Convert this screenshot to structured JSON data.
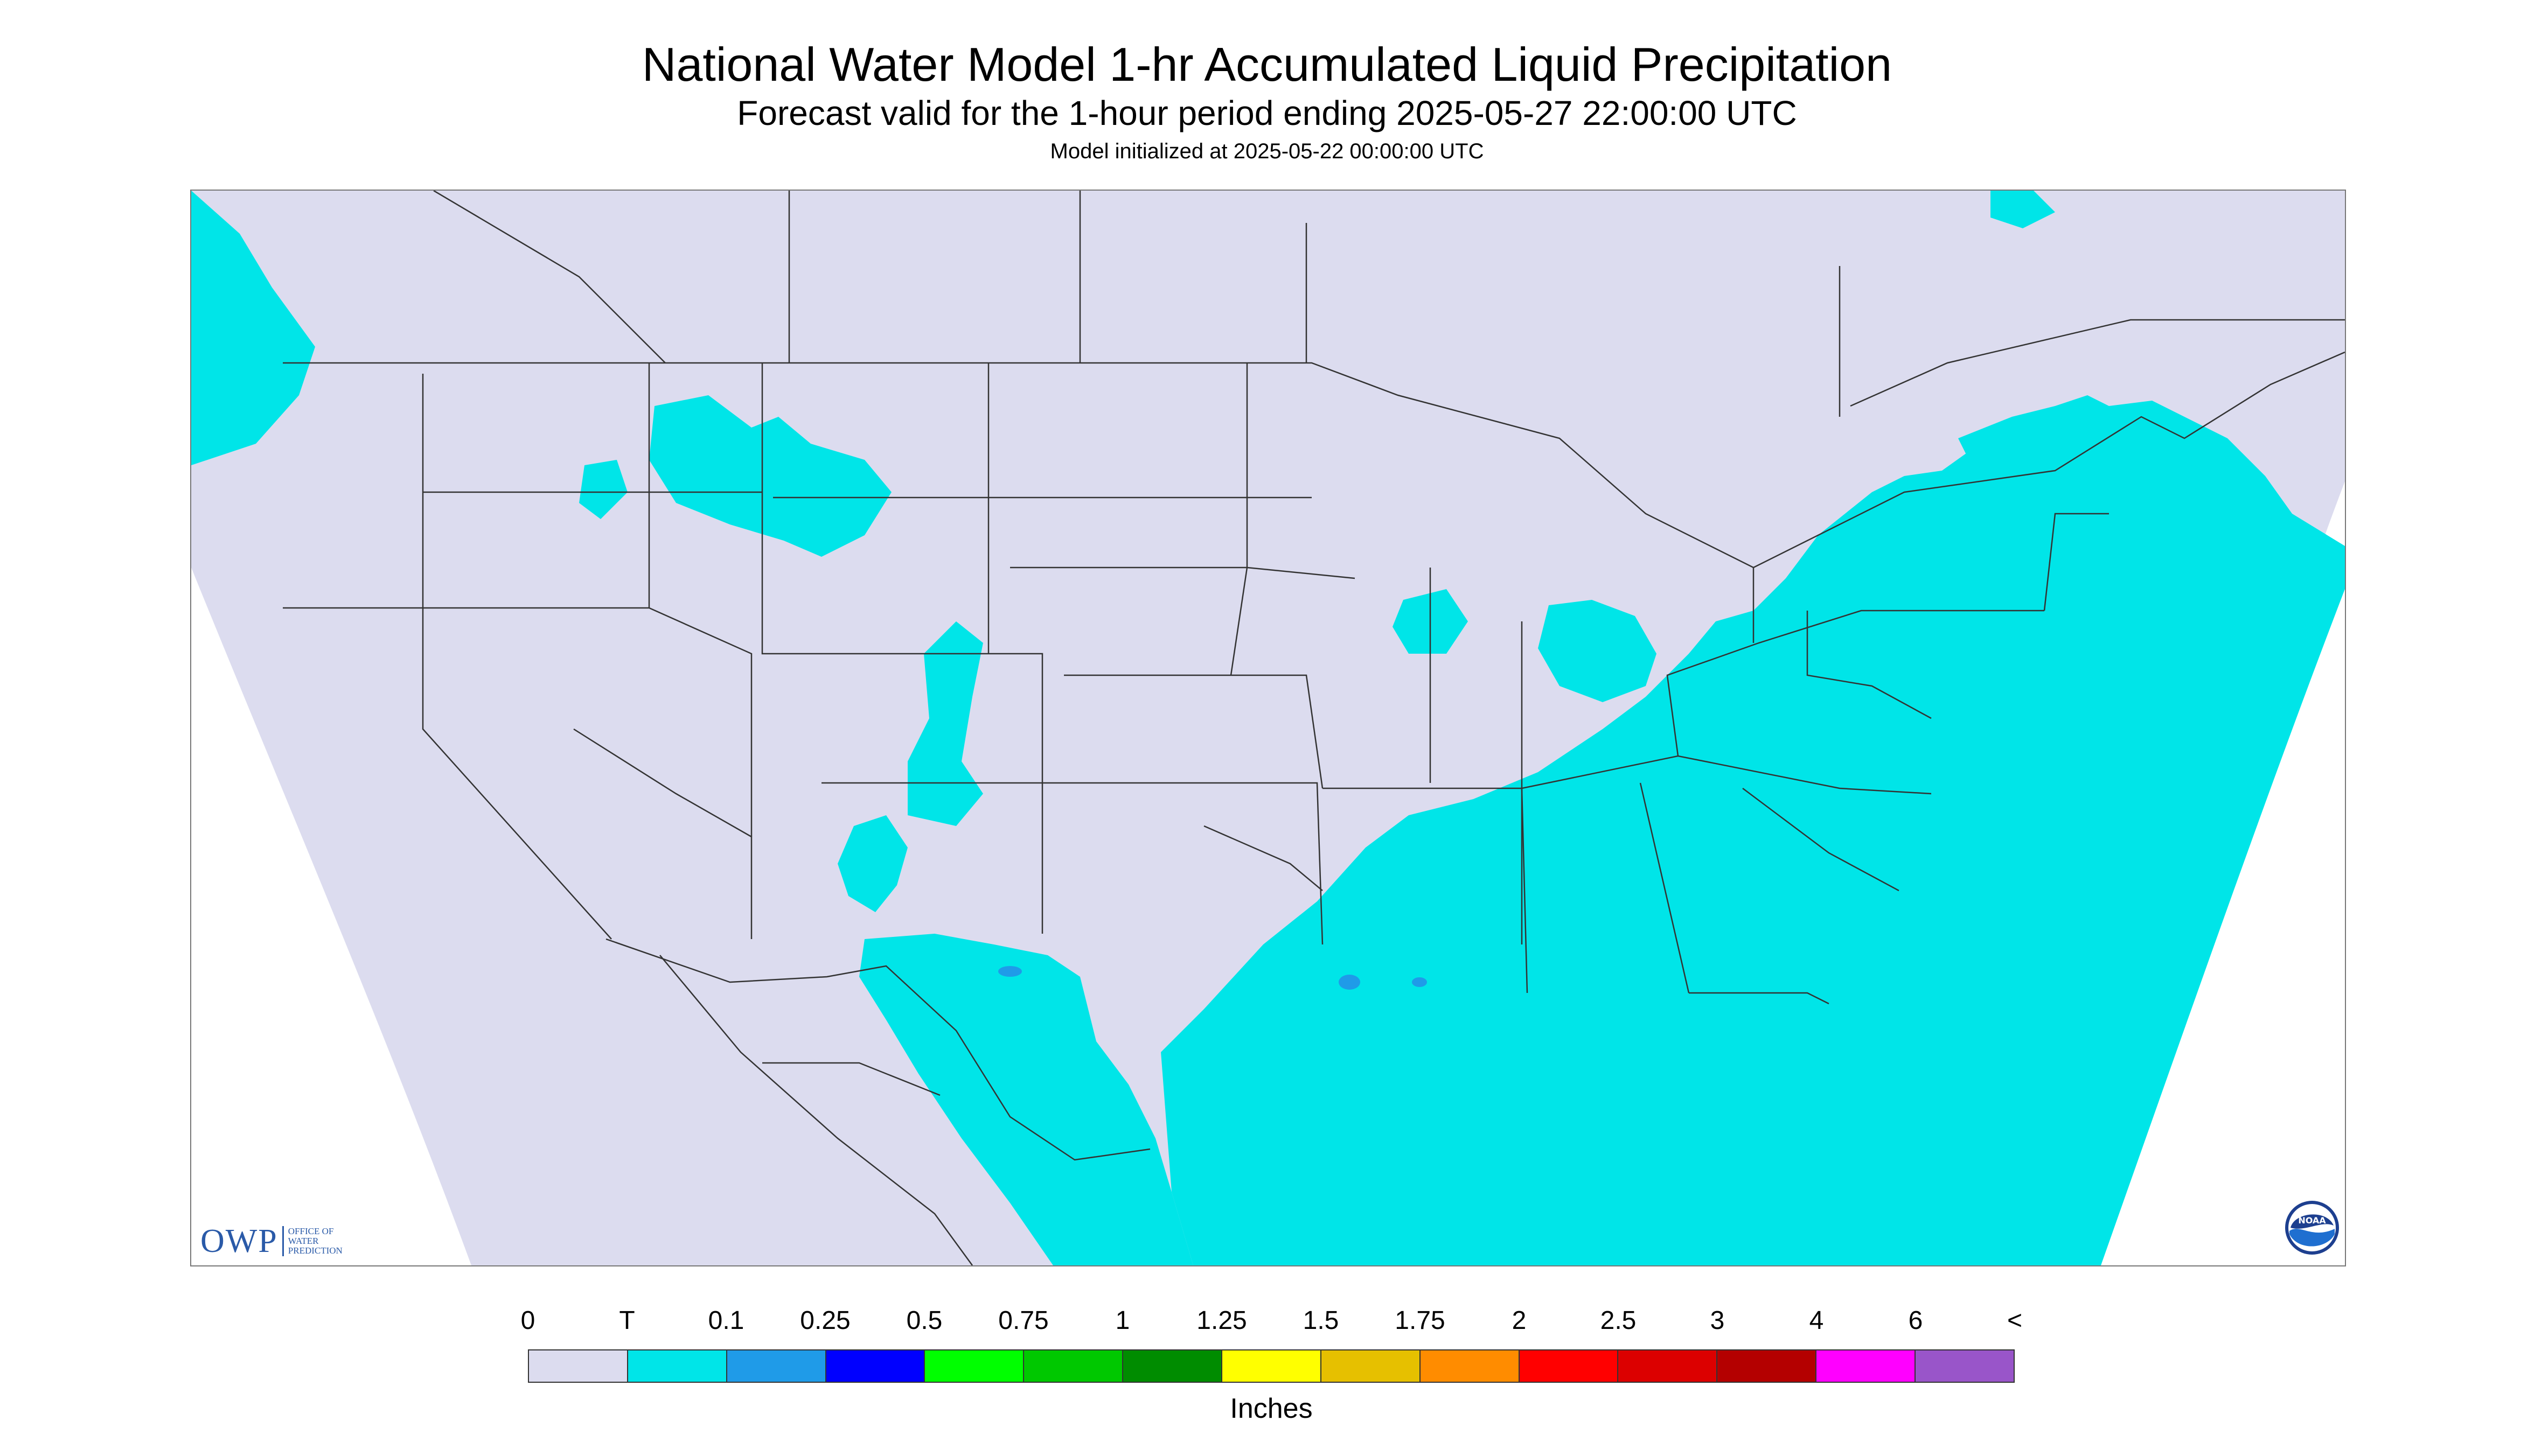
{
  "header": {
    "title": "National Water Model 1-hr Accumulated Liquid Precipitation",
    "subtitle": "Forecast valid for the 1-hour period ending 2025-05-27 22:00:00 UTC",
    "init": "Model initialized at 2025-05-22 00:00:00 UTC"
  },
  "map": {
    "background_color": "#ffffff",
    "domain_color": "#dcdcef",
    "precip_color": "#00e5e8",
    "heavier_precip_color": "#1f9be8",
    "boundary_color": "#333333"
  },
  "logos": {
    "owp": {
      "mark": "OWP",
      "lines": [
        "OFFICE OF",
        "WATER",
        "PREDICTION"
      ]
    },
    "noaa": {
      "mark": "NOAA"
    }
  },
  "legend": {
    "labels": [
      "0",
      "T",
      "0.1",
      "0.25",
      "0.5",
      "0.75",
      "1",
      "1.25",
      "1.5",
      "1.75",
      "2",
      "2.5",
      "3",
      "4",
      "6",
      "<"
    ],
    "colors": [
      "#dcdcef",
      "#00e5e8",
      "#1f9be8",
      "#0000ff",
      "#00ff00",
      "#00c800",
      "#008c00",
      "#ffff00",
      "#e6c000",
      "#ff8c00",
      "#ff0000",
      "#dc0000",
      "#b40000",
      "#ff00ff",
      "#9955c9"
    ],
    "units": "Inches"
  }
}
